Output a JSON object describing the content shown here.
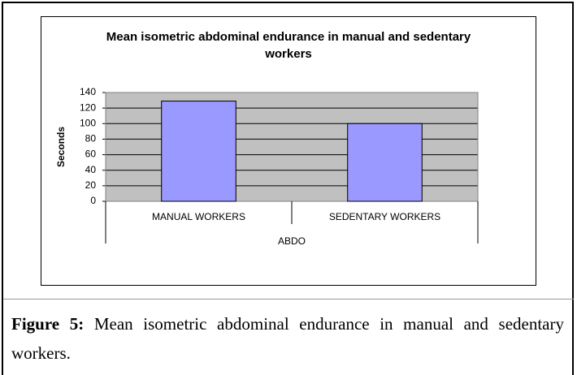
{
  "chart_data": {
    "type": "bar",
    "title": "Mean isometric abdominal endurance in manual and sedentary workers",
    "y_label": "Seconds",
    "categories": [
      "MANUAL WORKERS",
      "SEDENTARY WORKERS"
    ],
    "group_label": "ABDO",
    "values": [
      129,
      100
    ],
    "color": "#9999ff",
    "ylim": [
      0,
      140
    ],
    "yticks": [
      0,
      20,
      40,
      60,
      80,
      100,
      120,
      140
    ],
    "grid": true
  },
  "caption": {
    "label": "Figure 5:",
    "text": "Mean isometric abdominal endurance in manual and sedentary workers."
  }
}
